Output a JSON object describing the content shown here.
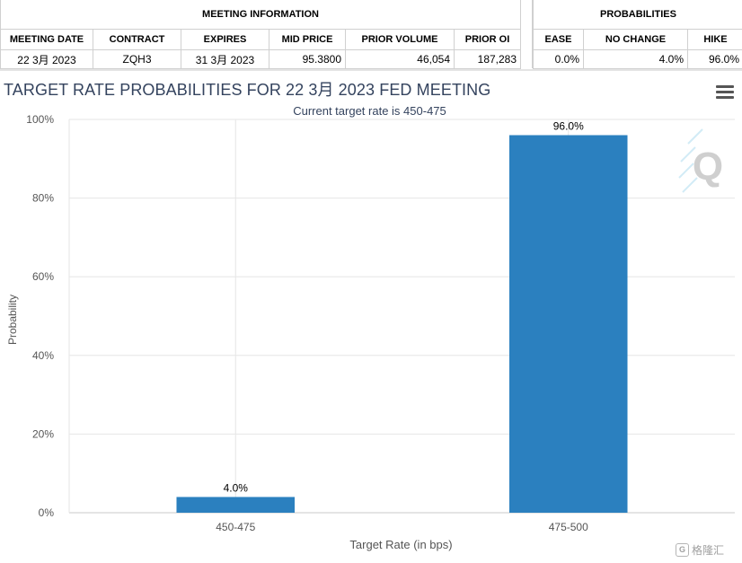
{
  "meeting_info": {
    "title": "MEETING INFORMATION",
    "columns": [
      "MEETING DATE",
      "CONTRACT",
      "EXPIRES",
      "MID PRICE",
      "PRIOR VOLUME",
      "PRIOR OI"
    ],
    "row": [
      "22 3月 2023",
      "ZQH3",
      "31 3月 2023",
      "95.3800",
      "46,054",
      "187,283"
    ]
  },
  "probabilities": {
    "title": "PROBABILITIES",
    "columns": [
      "EASE",
      "NO CHANGE",
      "HIKE"
    ],
    "row": [
      "0.0%",
      "4.0%",
      "96.0%"
    ]
  },
  "chart_title": "TARGET RATE PROBABILITIES FOR 22 3月 2023 FED MEETING",
  "menu_icon": "hamburger-menu-icon",
  "watermark_logo": "Q",
  "footer_logo": {
    "icon": "G",
    "text": "格隆汇"
  },
  "colors": {
    "bar": "#2b80bf",
    "title": "#34435e",
    "subtitle": "#34435e",
    "axis_text": "#555555",
    "grid": "#e6e6e6"
  },
  "chart_data": {
    "type": "bar",
    "title": "TARGET RATE PROBABILITIES FOR 22 3月 2023 FED MEETING",
    "subtitle": "Current target rate is 450-475",
    "categories": [
      "450-475",
      "475-500"
    ],
    "values": [
      4.0,
      96.0
    ],
    "value_labels": [
      "4.0%",
      "96.0%"
    ],
    "xlabel": "Target Rate (in bps)",
    "ylabel": "Probability",
    "ylim": [
      0,
      100
    ],
    "yticks": [
      0,
      20,
      40,
      60,
      80,
      100
    ],
    "ytick_labels": [
      "0%",
      "20%",
      "40%",
      "60%",
      "80%",
      "100%"
    ],
    "grid": true,
    "legend": false
  }
}
